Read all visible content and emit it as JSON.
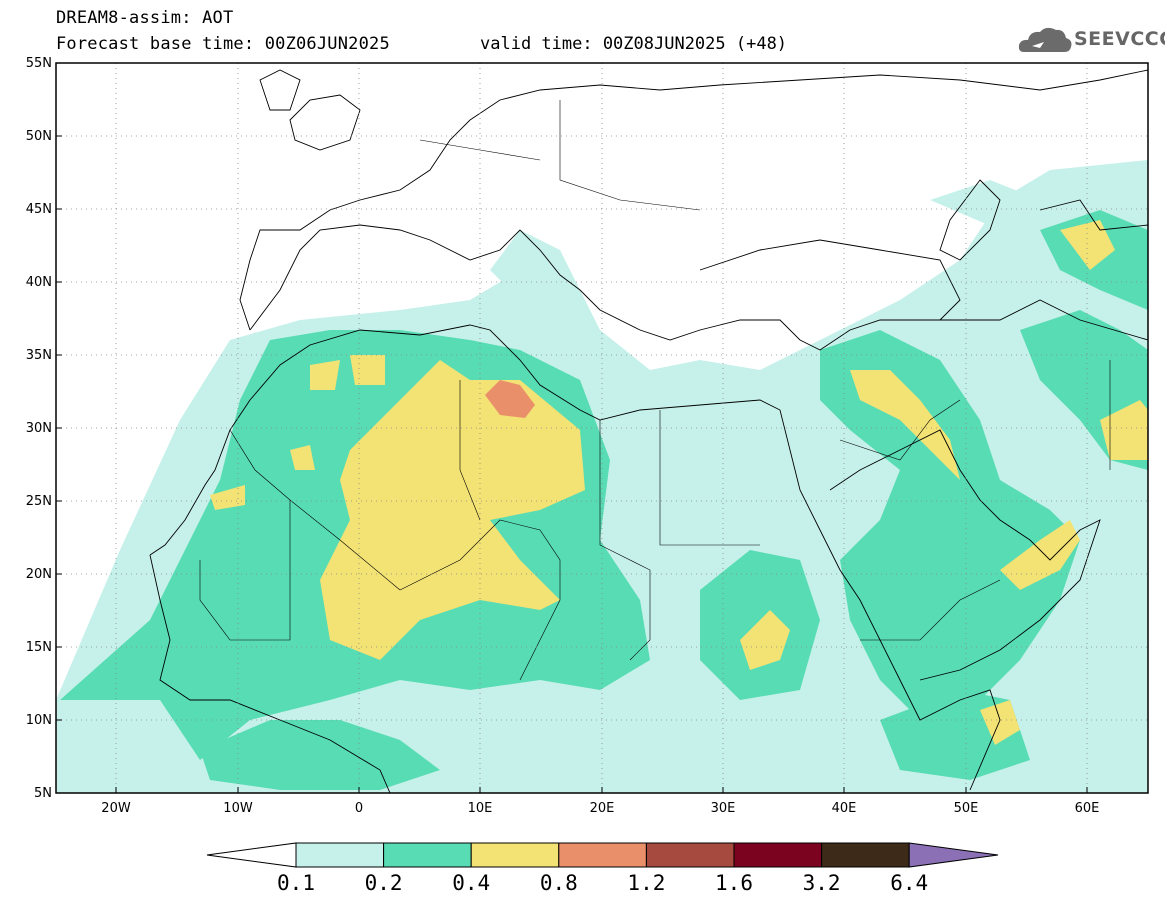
{
  "header": {
    "title": "DREAM8-assim: AOT",
    "base_time": "Forecast base time: 00Z06JUN2025",
    "valid_time": "valid time: 00Z08JUN2025 (+48)"
  },
  "logo": {
    "icon": "cloud-icon",
    "text": "SEEVCCC"
  },
  "axes": {
    "lat_labels": [
      "55N",
      "50N",
      "45N",
      "40N",
      "35N",
      "30N",
      "25N",
      "20N",
      "15N",
      "10N",
      "5N"
    ],
    "lon_labels": [
      "20W",
      "10W",
      "0",
      "10E",
      "20E",
      "30E",
      "40E",
      "50E",
      "60E"
    ]
  },
  "colorbar": {
    "labels": [
      "0.1",
      "0.2",
      "0.4",
      "0.8",
      "1.2",
      "1.6",
      "3.2",
      "6.4"
    ],
    "colors": [
      "#ffffff",
      "#c6f1ea",
      "#58dcb4",
      "#f3e274",
      "#e9906b",
      "#a64a3f",
      "#7b0320",
      "#3d2a18",
      "#8b70b6"
    ]
  }
}
